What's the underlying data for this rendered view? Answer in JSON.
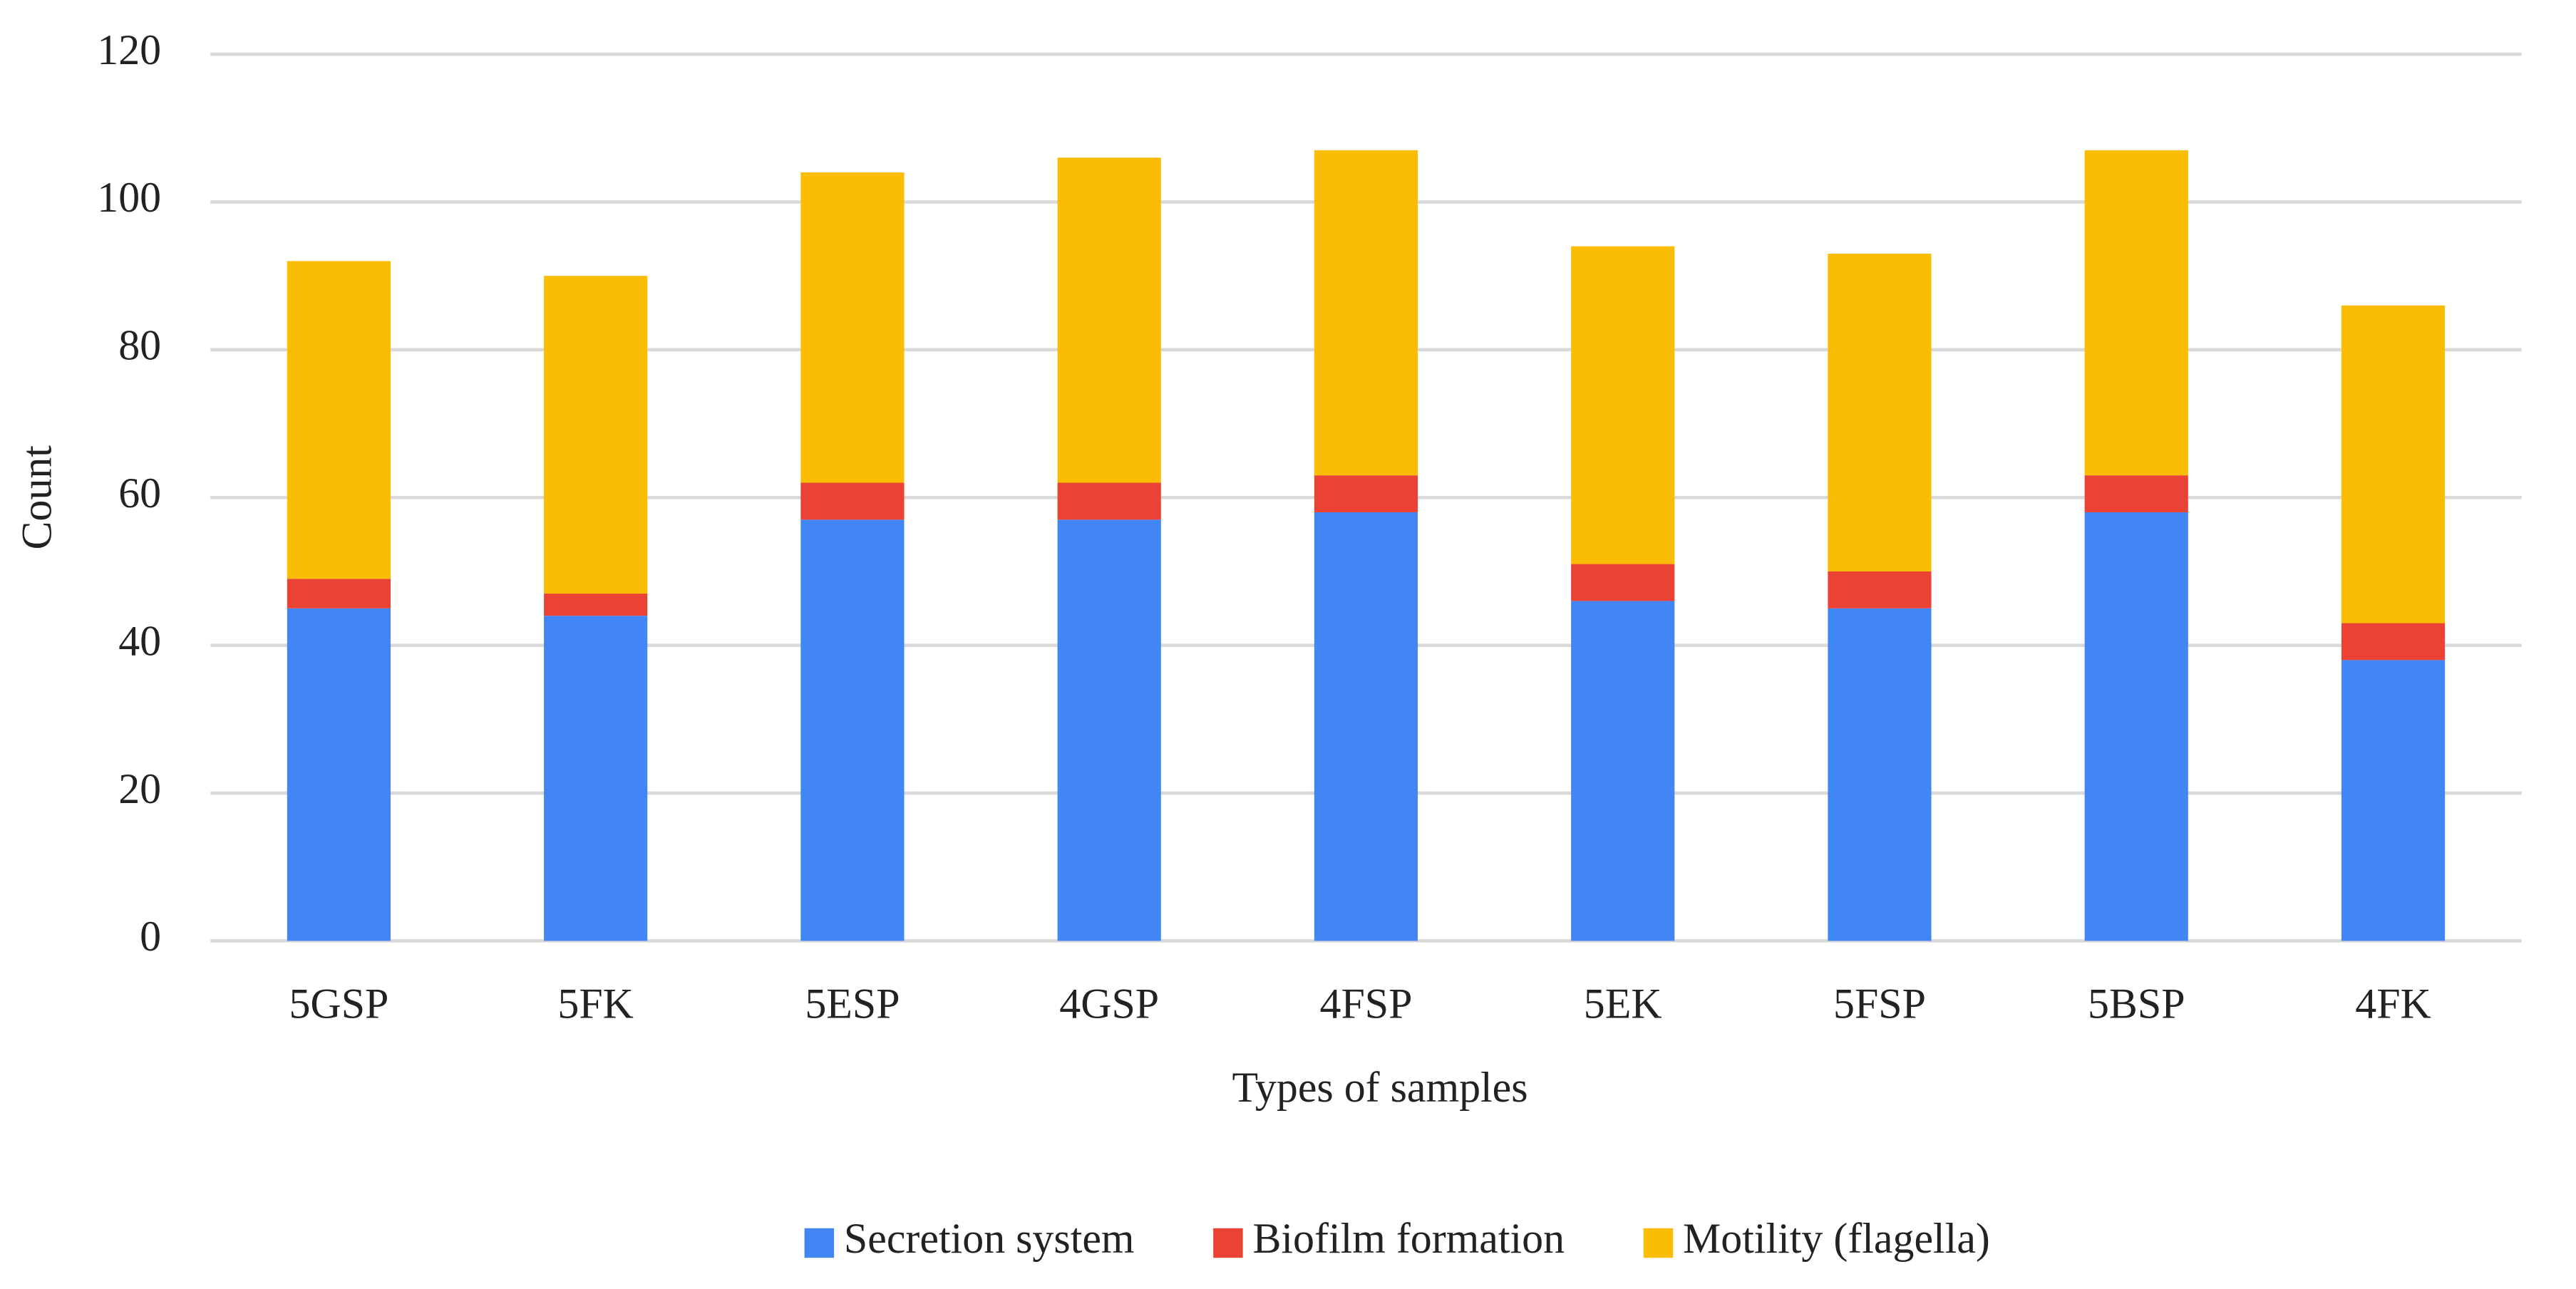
{
  "chart_data": {
    "type": "stacked_bar",
    "x_label": "Types of samples",
    "y_label": "Count",
    "categories": [
      "5GSP",
      "5FK",
      "5ESP",
      "4GSP",
      "4FSP",
      "5EK",
      "5FSP",
      "5BSP",
      "4FK"
    ],
    "series": [
      {
        "name": "Secretion system",
        "color": "#4285f4",
        "values": [
          45,
          44,
          57,
          57,
          58,
          46,
          45,
          58,
          38
        ]
      },
      {
        "name": "Biofilm formation",
        "color": "#ea4335",
        "values": [
          4,
          3,
          5,
          5,
          5,
          5,
          5,
          5,
          5
        ]
      },
      {
        "name": "Motility (flagella)",
        "color": "#fbbc04",
        "values": [
          43,
          43,
          42,
          44,
          44,
          43,
          43,
          44,
          43
        ]
      }
    ],
    "ylim": [
      0,
      120
    ],
    "yticks": [
      0,
      20,
      40,
      60,
      80,
      100,
      120
    ],
    "grid": true,
    "legend": "bottom"
  }
}
